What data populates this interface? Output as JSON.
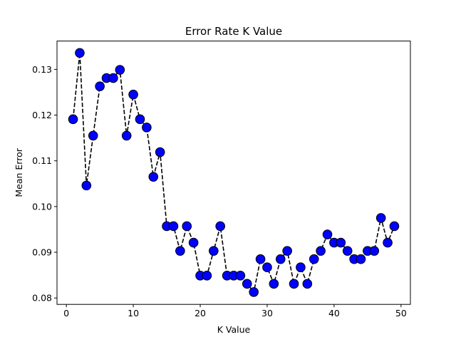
{
  "chart_data": {
    "type": "line",
    "title": "Error Rate K Value",
    "xlabel": "K Value",
    "ylabel": "Mean Error",
    "xlim": [
      -1.4,
      51.4
    ],
    "ylim": [
      0.0786,
      0.1362
    ],
    "xticks": [
      0,
      10,
      20,
      30,
      40,
      50
    ],
    "xtick_labels": [
      "0",
      "10",
      "20",
      "30",
      "40",
      "50"
    ],
    "yticks": [
      0.08,
      0.09,
      0.1,
      0.11,
      0.12,
      0.13
    ],
    "ytick_labels": [
      "0.08",
      "0.09",
      "0.10",
      "0.11",
      "0.12",
      "0.13"
    ],
    "grid": false,
    "line_color": "#000000",
    "line_style": "dashed",
    "marker": "circle",
    "marker_face_color": "#0000ff",
    "marker_edge_color": "#000000",
    "series": [
      {
        "x": [
          1,
          2,
          3,
          4,
          5,
          6,
          7,
          8,
          9,
          10,
          11,
          12,
          13,
          14,
          15,
          16,
          17,
          18,
          19,
          20,
          21,
          22,
          23,
          24,
          25,
          26,
          27,
          28,
          29,
          30,
          31,
          32,
          33,
          34,
          35,
          36,
          37,
          38,
          39,
          40,
          41,
          42,
          43,
          44,
          45,
          46,
          47,
          48,
          49
        ],
        "values": [
          0.1191,
          0.1336,
          0.1046,
          0.1155,
          0.1263,
          0.1281,
          0.1281,
          0.1299,
          0.1155,
          0.1245,
          0.1191,
          0.1173,
          0.1065,
          0.1119,
          0.0957,
          0.0957,
          0.0903,
          0.0957,
          0.0921,
          0.0849,
          0.0849,
          0.0903,
          0.0957,
          0.0849,
          0.0849,
          0.0849,
          0.0831,
          0.0813,
          0.0885,
          0.0867,
          0.0831,
          0.0885,
          0.0903,
          0.0831,
          0.0867,
          0.0831,
          0.0885,
          0.0903,
          0.0939,
          0.0921,
          0.0921,
          0.0903,
          0.0885,
          0.0885,
          0.0903,
          0.0903,
          0.0975,
          0.0921,
          0.0957
        ]
      }
    ]
  }
}
